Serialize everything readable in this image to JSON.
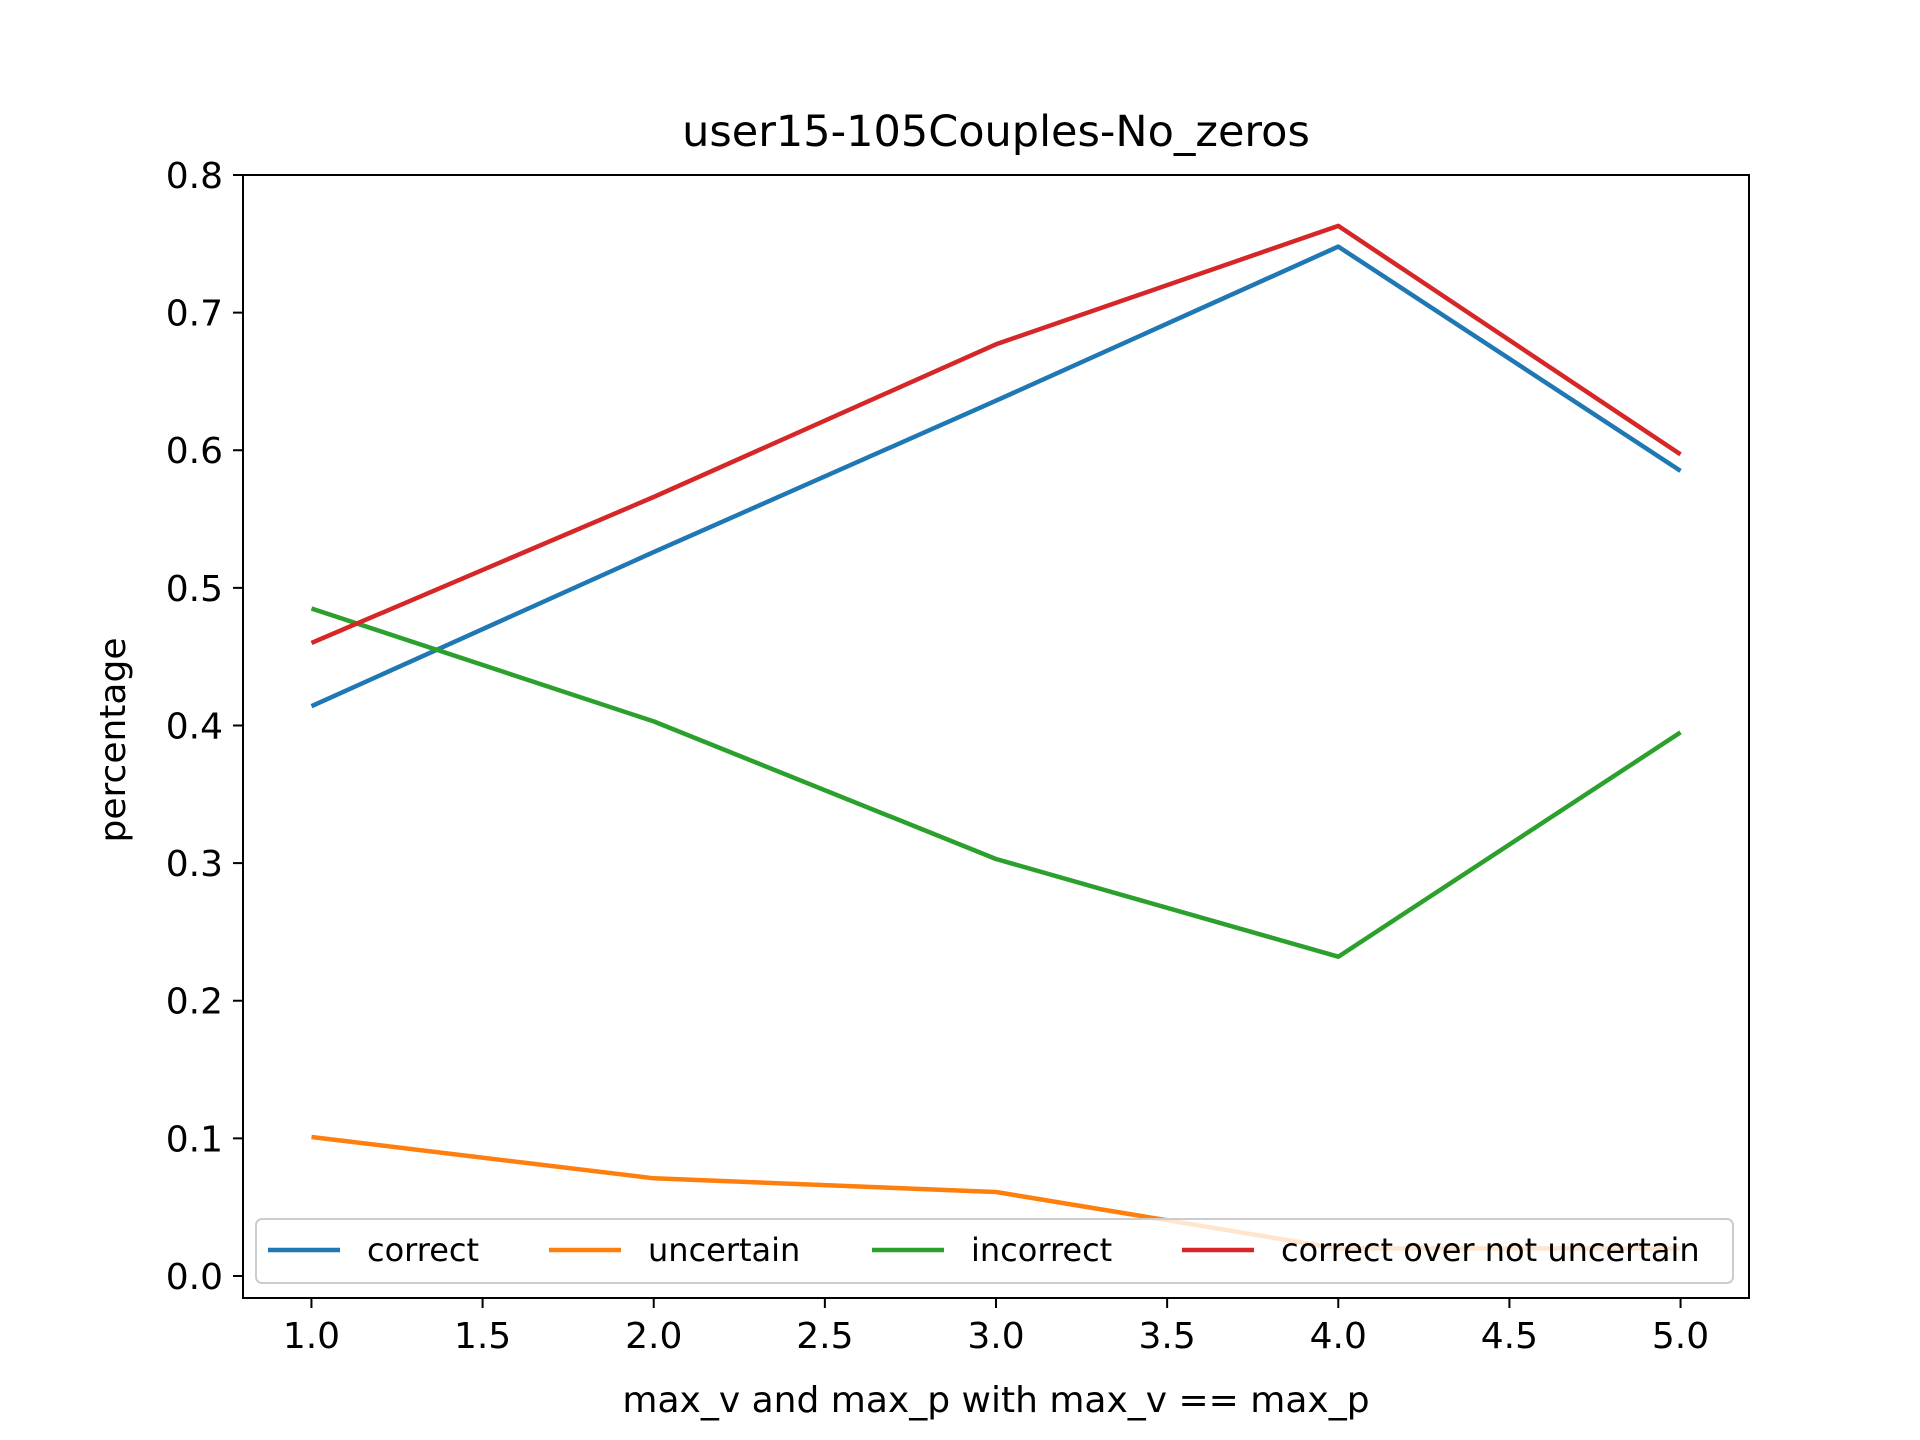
{
  "chart_data": {
    "type": "line",
    "title": "user15-105Couples-No_zeros",
    "xlabel": "max_v and max_p with max_v == max_p",
    "ylabel": "percentage",
    "xlim": [
      0.8,
      5.2
    ],
    "ylim": [
      -0.016,
      0.8
    ],
    "x": [
      1.0,
      2.0,
      3.0,
      4.0,
      5.0
    ],
    "x_ticks": [
      "1.0",
      "1.5",
      "2.0",
      "2.5",
      "3.0",
      "3.5",
      "4.0",
      "4.5",
      "5.0"
    ],
    "y_ticks": [
      "0.0",
      "0.1",
      "0.2",
      "0.3",
      "0.4",
      "0.5",
      "0.6",
      "0.7",
      "0.8"
    ],
    "grid": false,
    "legend": {
      "placement": "lower center",
      "columns": 4
    },
    "series": [
      {
        "name": "correct",
        "color": "#1f77b4",
        "values": [
          0.414,
          0.526,
          0.636,
          0.748,
          0.585
        ]
      },
      {
        "name": "uncertain",
        "color": "#ff7f0e",
        "values": [
          0.101,
          0.071,
          0.061,
          0.02,
          0.02
        ]
      },
      {
        "name": "incorrect",
        "color": "#2ca02c",
        "values": [
          0.485,
          0.403,
          0.303,
          0.232,
          0.395
        ]
      },
      {
        "name": "correct over not uncertain",
        "color": "#d62728",
        "values": [
          0.46,
          0.566,
          0.677,
          0.763,
          0.597
        ]
      }
    ]
  }
}
